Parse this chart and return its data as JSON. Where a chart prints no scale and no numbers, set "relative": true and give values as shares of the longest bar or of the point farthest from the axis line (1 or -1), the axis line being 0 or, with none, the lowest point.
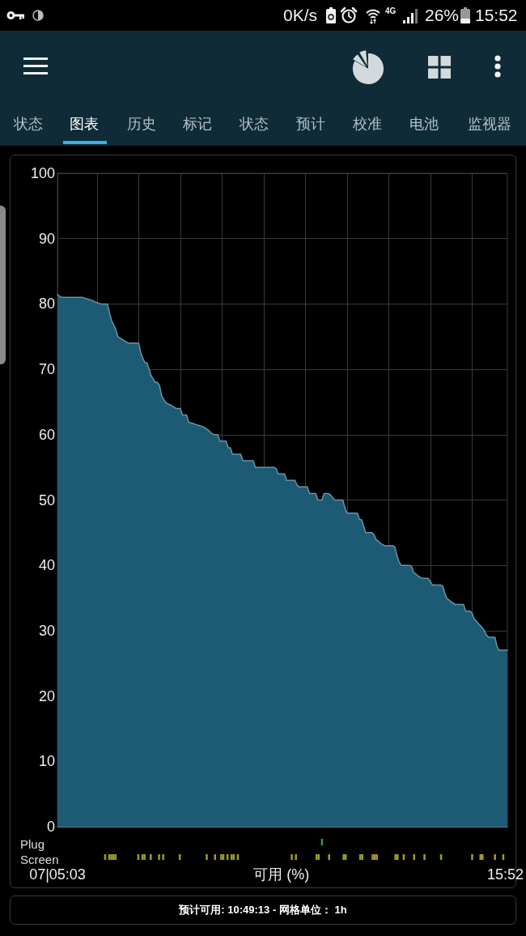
{
  "chart_data": [
    {
      "type": "area",
      "color": "#1c5b73",
      "categories": [
        null,
        null,
        null,
        null,
        null,
        null,
        null,
        null,
        null,
        null,
        null,
        null,
        null,
        null,
        null,
        null,
        null,
        null,
        null,
        null,
        null,
        null,
        null,
        null,
        null,
        null,
        null,
        null,
        null,
        null,
        null,
        null,
        null,
        null,
        null,
        null,
        null,
        null,
        null,
        null,
        null,
        null,
        null,
        null,
        null,
        null,
        null,
        null,
        null,
        null,
        null,
        null,
        null,
        null,
        null,
        null,
        null,
        null,
        null,
        null,
        null,
        null,
        null,
        null,
        null,
        null,
        null,
        null,
        null,
        null,
        null,
        null,
        null,
        null,
        null,
        null,
        null,
        null,
        null,
        null,
        null,
        null,
        null,
        null,
        null,
        null,
        null,
        null,
        null,
        null,
        null,
        null,
        null,
        null,
        null,
        null,
        null,
        null,
        null,
        null,
        null,
        null,
        null,
        null,
        null,
        null,
        null,
        null,
        null,
        null,
        null,
        null,
        null,
        null,
        null,
        null,
        null,
        null,
        null,
        null,
        null,
        null,
        null,
        null,
        null,
        null,
        null,
        null,
        null,
        null,
        null,
        null,
        null,
        null,
        null,
        null,
        null,
        null,
        null,
        null,
        null,
        null,
        null,
        null,
        null,
        null,
        null,
        null,
        null,
        null,
        null,
        null,
        null,
        null,
        null,
        null,
        null,
        null,
        null,
        null,
        null,
        null,
        null,
        null,
        null,
        null,
        null,
        null,
        null,
        null,
        null,
        null,
        null,
        null,
        null,
        null,
        null,
        null,
        null,
        null,
        null,
        null,
        null,
        null,
        null,
        null,
        null,
        null,
        null,
        null,
        null,
        null,
        null,
        null,
        null,
        null,
        null,
        null,
        null,
        null,
        null,
        null,
        null,
        null,
        null,
        null,
        null,
        null,
        null,
        null,
        null,
        null,
        null,
        null,
        null,
        null,
        null
      ],
      "values": [
        81.4,
        81.2,
        81,
        81,
        81,
        81,
        81,
        81,
        81,
        81,
        81,
        81,
        81,
        80.9,
        80.8,
        80.7,
        80.6,
        80.5,
        80.3,
        80.2,
        80.1,
        80,
        80,
        80,
        80,
        78.6,
        77.5,
        76.8,
        76.1,
        75,
        74.8,
        74.6,
        74.4,
        74.2,
        74,
        74,
        74,
        74,
        74,
        74,
        72.5,
        71.7,
        71,
        71,
        70,
        69,
        68.5,
        68,
        68,
        67.5,
        66,
        65.4,
        64.9,
        64.7,
        64.6,
        64.4,
        64.2,
        64,
        64,
        64,
        63,
        63,
        63,
        61.9,
        61.8,
        61.7,
        61.6,
        61.5,
        61.4,
        61.3,
        61.2,
        61,
        60.8,
        60.5,
        60.2,
        60,
        60,
        60,
        59,
        59,
        59,
        59,
        58,
        58,
        57,
        57,
        57,
        57,
        57,
        56,
        56,
        56,
        56,
        56,
        56,
        55,
        55,
        55,
        55,
        55,
        55,
        55,
        55,
        55,
        55,
        54.8,
        54,
        54,
        54,
        54,
        53,
        53,
        53,
        53,
        53,
        52.3,
        52,
        52,
        52,
        52,
        52,
        51,
        51,
        51,
        51,
        50,
        50,
        50,
        51,
        51,
        51,
        50.8,
        50.4,
        50,
        50,
        50,
        50,
        50,
        48.8,
        48,
        48,
        48,
        48,
        48,
        48,
        47,
        47,
        46,
        45,
        45,
        45,
        45,
        44.7,
        43.9,
        43.7,
        43.4,
        43.2,
        43,
        43,
        43,
        43,
        43,
        42.8,
        41.5,
        40.5,
        40,
        40,
        40,
        40,
        40,
        39.8,
        38.9,
        38.7,
        38.4,
        38.2,
        38,
        38,
        38,
        38,
        37.5,
        37,
        37,
        37,
        37,
        37,
        36.8,
        35.7,
        34.9,
        34.7,
        34.4,
        34.2,
        34,
        34,
        34,
        34,
        34,
        33,
        33,
        33,
        32.7,
        31.8,
        31.5,
        31.1,
        30.8,
        30.4,
        30,
        29.3,
        29,
        29,
        29,
        29,
        27.6,
        27,
        27,
        27,
        27,
        27
      ],
      "ylim": [
        0,
        100
      ],
      "yticks": [
        0,
        10,
        20,
        30,
        40,
        50,
        60,
        70,
        80,
        90,
        100
      ],
      "grid": true,
      "tick_labels": "y",
      "annotations": [
        "0K/s",
        "4G",
        "26%",
        "15:52",
        "状态",
        "图表",
        "历史",
        "标记",
        "状态",
        "预计",
        "校准",
        "电池",
        "监视器",
        "预计可用: 10:49:13 - 网格单位： 1h"
      ]
    },
    {
      "type": "bar",
      "relative": true,
      "tick_labels": false,
      "categories": [
        null,
        null,
        null,
        null,
        null,
        null,
        null,
        null,
        null,
        null,
        null,
        null,
        null,
        null,
        null,
        null,
        null,
        null,
        null,
        null,
        null,
        null,
        null,
        null,
        null,
        null,
        null,
        null,
        null,
        null,
        null,
        null,
        null,
        null,
        null,
        null,
        null,
        null,
        null,
        null,
        null,
        null,
        null,
        null,
        null,
        null,
        null,
        null,
        null,
        null,
        null,
        null,
        null,
        null,
        null,
        null,
        null,
        null,
        null,
        null,
        null,
        null,
        null,
        null,
        null,
        null,
        null,
        null,
        null,
        null,
        null,
        null,
        null,
        null,
        null,
        null,
        null,
        null,
        null,
        null,
        null,
        null,
        null,
        null,
        null,
        null,
        null,
        null,
        null,
        null,
        null,
        null,
        null,
        null,
        null,
        null,
        null,
        null,
        null,
        null,
        null,
        null,
        null,
        null,
        null,
        null,
        null,
        null,
        null,
        null,
        null,
        null,
        null,
        null,
        null,
        null,
        null,
        null,
        null,
        null,
        null,
        null,
        null,
        null,
        null,
        null,
        null,
        null,
        null,
        null,
        null,
        null,
        null,
        null,
        null,
        null,
        null,
        null,
        null,
        null,
        null,
        null,
        null,
        null,
        null,
        null,
        null,
        null,
        null,
        null,
        null,
        null,
        null,
        null,
        null,
        null,
        null,
        null,
        null,
        null,
        null,
        null,
        null,
        null,
        null,
        null,
        null,
        null,
        null,
        null,
        null,
        null,
        null,
        null,
        null,
        null,
        null,
        null,
        null,
        null,
        null,
        null,
        null,
        null,
        null,
        null,
        null,
        null,
        null,
        null,
        null,
        null,
        null,
        null,
        null,
        null,
        null,
        null,
        null,
        null,
        null,
        null,
        null,
        null,
        null,
        null,
        null,
        null,
        null,
        null,
        null,
        null,
        null,
        null,
        null,
        null,
        null
      ],
      "series": [
        {
          "name": "Plug",
          "color": "#2f9e3a",
          "values": [
            null,
            null,
            null,
            null,
            null,
            null,
            null,
            null,
            null,
            null,
            null,
            null,
            null,
            null,
            null,
            null,
            null,
            null,
            null,
            null,
            null,
            null,
            null,
            null,
            null,
            null,
            null,
            null,
            null,
            null,
            null,
            null,
            null,
            null,
            null,
            null,
            null,
            null,
            null,
            null,
            null,
            null,
            null,
            null,
            null,
            null,
            null,
            null,
            null,
            null,
            null,
            null,
            null,
            null,
            null,
            null,
            null,
            null,
            null,
            null,
            null,
            null,
            null,
            null,
            null,
            null,
            null,
            null,
            null,
            null,
            null,
            null,
            null,
            null,
            null,
            null,
            null,
            null,
            null,
            null,
            null,
            null,
            null,
            null,
            null,
            null,
            null,
            null,
            null,
            null,
            null,
            null,
            null,
            null,
            null,
            null,
            null,
            null,
            null,
            null,
            null,
            null,
            null,
            null,
            null,
            null,
            null,
            null,
            null,
            null,
            null,
            null,
            null,
            null,
            null,
            null,
            null,
            null,
            null,
            null,
            null,
            null,
            null,
            null,
            null,
            null,
            null,
            1,
            null,
            null,
            null,
            null,
            null,
            null,
            null,
            null,
            null,
            null,
            null,
            null,
            null,
            null,
            null,
            null,
            null,
            null,
            null,
            null,
            null,
            null,
            null,
            null,
            null,
            null,
            null,
            null,
            null,
            null,
            null,
            null,
            null,
            null,
            null,
            null,
            null,
            null,
            null,
            null,
            null,
            null,
            null,
            null,
            null,
            null,
            null,
            null,
            null,
            null,
            null,
            null,
            null,
            null,
            null,
            null,
            null,
            null,
            null,
            null,
            null,
            null,
            null,
            null,
            null,
            null,
            null,
            null,
            null,
            null,
            null,
            null,
            null,
            null,
            null,
            null,
            null,
            null,
            null,
            null,
            null,
            null,
            null,
            null,
            null,
            null,
            null,
            null,
            null
          ]
        }
      ]
    },
    {
      "type": "bar",
      "relative": true,
      "tick_labels": "x",
      "xlabel": "可用 (%)",
      "categories": [
        "07|05:03",
        null,
        null,
        null,
        null,
        null,
        null,
        null,
        null,
        null,
        null,
        null,
        null,
        null,
        null,
        null,
        null,
        null,
        null,
        null,
        null,
        null,
        null,
        null,
        null,
        null,
        null,
        null,
        null,
        null,
        null,
        null,
        null,
        null,
        null,
        null,
        null,
        null,
        null,
        null,
        null,
        null,
        null,
        null,
        null,
        null,
        null,
        null,
        null,
        null,
        null,
        null,
        null,
        null,
        null,
        null,
        null,
        null,
        null,
        null,
        null,
        null,
        null,
        null,
        null,
        null,
        null,
        null,
        null,
        null,
        null,
        null,
        null,
        null,
        null,
        null,
        null,
        null,
        null,
        null,
        null,
        null,
        null,
        null,
        null,
        null,
        null,
        null,
        null,
        null,
        null,
        null,
        null,
        null,
        null,
        null,
        null,
        null,
        null,
        null,
        null,
        null,
        null,
        null,
        null,
        null,
        null,
        null,
        null,
        null,
        null,
        null,
        null,
        null,
        null,
        null,
        null,
        null,
        null,
        null,
        null,
        null,
        null,
        null,
        null,
        null,
        null,
        null,
        null,
        null,
        null,
        null,
        null,
        null,
        null,
        null,
        null,
        null,
        null,
        null,
        null,
        null,
        null,
        null,
        null,
        null,
        null,
        null,
        null,
        null,
        null,
        null,
        null,
        null,
        null,
        null,
        null,
        null,
        null,
        null,
        null,
        null,
        null,
        null,
        null,
        null,
        null,
        null,
        null,
        null,
        null,
        null,
        null,
        null,
        null,
        null,
        null,
        null,
        null,
        null,
        null,
        null,
        null,
        null,
        null,
        null,
        null,
        null,
        null,
        null,
        null,
        null,
        null,
        null,
        null,
        null,
        null,
        null,
        null,
        null,
        null,
        null,
        null,
        null,
        null,
        null,
        null,
        null,
        null,
        null,
        null,
        null,
        null,
        null,
        null,
        null,
        "15:52"
      ],
      "series": [
        {
          "name": "Screen",
          "color": "#9c9c22",
          "values": [
            null,
            null,
            null,
            null,
            null,
            null,
            null,
            null,
            null,
            null,
            null,
            null,
            null,
            null,
            null,
            null,
            null,
            null,
            null,
            null,
            null,
            null,
            null,
            1,
            null,
            1,
            1,
            1,
            1,
            null,
            null,
            null,
            null,
            null,
            null,
            null,
            null,
            null,
            null,
            1,
            null,
            1,
            1,
            null,
            null,
            1,
            null,
            null,
            null,
            1,
            null,
            1,
            null,
            null,
            null,
            null,
            null,
            null,
            null,
            1,
            null,
            null,
            null,
            null,
            null,
            null,
            null,
            null,
            null,
            null,
            null,
            null,
            1,
            null,
            null,
            null,
            1,
            null,
            null,
            1,
            1,
            null,
            1,
            null,
            1,
            1,
            null,
            1,
            null,
            null,
            null,
            null,
            null,
            null,
            null,
            null,
            null,
            null,
            null,
            null,
            null,
            null,
            null,
            null,
            null,
            null,
            null,
            null,
            null,
            null,
            null,
            null,
            null,
            1,
            null,
            1,
            null,
            null,
            null,
            null,
            null,
            null,
            null,
            null,
            null,
            1,
            1,
            null,
            null,
            null,
            null,
            1,
            null,
            null,
            null,
            null,
            null,
            null,
            1,
            1,
            null,
            null,
            null,
            null,
            null,
            null,
            1,
            1,
            null,
            null,
            null,
            null,
            1,
            1,
            1,
            null,
            null,
            null,
            null,
            null,
            null,
            null,
            null,
            1,
            1,
            null,
            null,
            1,
            null,
            null,
            null,
            null,
            1,
            null,
            null,
            null,
            null,
            1,
            null,
            null,
            null,
            null,
            null,
            null,
            null,
            1,
            null,
            null,
            null,
            null,
            null,
            null,
            null,
            null,
            null,
            null,
            null,
            null,
            null,
            null,
            1,
            null,
            null,
            null,
            1,
            1,
            null,
            null,
            null,
            null,
            null,
            1,
            null,
            null,
            null,
            1,
            null
          ]
        }
      ]
    }
  ]
}
